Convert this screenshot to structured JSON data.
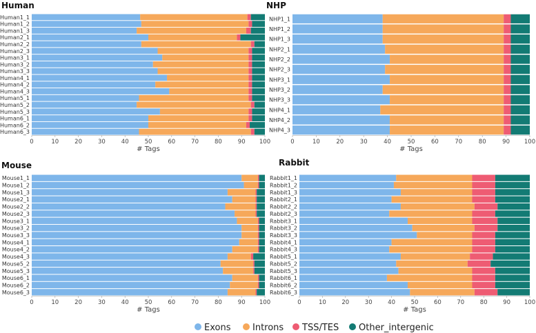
{
  "colors": {
    "exons": "#7EB6EA",
    "introns": "#F6A85A",
    "tss": "#EE5C73",
    "other": "#137B74"
  },
  "legend": [
    "Exons",
    "Introns",
    "TSS/TES",
    "Other_intergenic"
  ],
  "chart_data": [
    {
      "type": "bar",
      "orientation": "horizontal",
      "stacked": true,
      "title": "Human",
      "xlabel": "# Tags",
      "ylabel": "",
      "xlim": [
        0,
        100
      ],
      "xticks": [
        0,
        10,
        20,
        30,
        40,
        50,
        60,
        70,
        80,
        90,
        100
      ],
      "categories": [
        "Human1_1",
        "Human1_2",
        "Human1_3",
        "Human2_1",
        "Human2_2",
        "Human2_3",
        "Human3_1",
        "Human3_2",
        "Human3_3",
        "Human4_1",
        "Human4_2",
        "Human4_3",
        "Human5_1",
        "Human5_2",
        "Human5_3",
        "Human6_1",
        "Human6_2",
        "Human6_3"
      ],
      "series": [
        {
          "name": "Exons",
          "values": [
            46.5,
            47,
            45,
            50,
            47,
            54,
            56,
            52,
            54,
            58,
            53,
            59,
            46,
            45,
            55,
            50,
            50,
            46
          ]
        },
        {
          "name": "Introns",
          "values": [
            46,
            46,
            47,
            38,
            47,
            39,
            37,
            41,
            39,
            35,
            40,
            34,
            47,
            49,
            38,
            43,
            42,
            48
          ]
        },
        {
          "name": "TSS/TES",
          "values": [
            1.5,
            1.5,
            2,
            1.5,
            1.5,
            1.5,
            1.5,
            1.5,
            1.5,
            1.5,
            1.5,
            1.5,
            1.5,
            1.5,
            1.5,
            1.5,
            1.5,
            1.5
          ]
        },
        {
          "name": "Other_intergenic",
          "values": [
            6,
            5.5,
            6,
            10.5,
            4.5,
            5.5,
            5.5,
            5.5,
            5.5,
            5.5,
            5.5,
            5.5,
            5.5,
            4.5,
            5.5,
            5.5,
            6.5,
            4.5
          ]
        }
      ]
    },
    {
      "type": "bar",
      "orientation": "horizontal",
      "stacked": true,
      "title": "NHP",
      "xlabel": "# Tags",
      "ylabel": "",
      "xlim": [
        0,
        100
      ],
      "xticks": [
        0,
        10,
        20,
        30,
        40,
        50,
        60,
        70,
        80,
        90,
        100
      ],
      "categories": [
        "NHP1_1",
        "NHP1_2",
        "NHP1_3",
        "NHP2_1",
        "NHP2_2",
        "NHP2_3",
        "NHP3_1",
        "NHP3_2",
        "NHP3_3",
        "NHP4_1",
        "NHP4_2",
        "NHP4_3"
      ],
      "series": [
        {
          "name": "Exons",
          "values": [
            38,
            38,
            38,
            39,
            41,
            39,
            41,
            38,
            41,
            37,
            41,
            41
          ]
        },
        {
          "name": "Introns",
          "values": [
            51,
            51,
            51,
            50,
            48,
            50,
            48,
            51,
            48,
            52,
            48,
            48
          ]
        },
        {
          "name": "TSS/TES",
          "values": [
            3,
            3,
            3,
            3,
            3,
            3,
            3,
            3,
            3,
            3,
            3,
            3
          ]
        },
        {
          "name": "Other_intergenic",
          "values": [
            8,
            8,
            8,
            8,
            8,
            8,
            8,
            8,
            8,
            8,
            8,
            8
          ]
        }
      ]
    },
    {
      "type": "bar",
      "orientation": "horizontal",
      "stacked": true,
      "title": "Mouse",
      "xlabel": "# Tags",
      "ylabel": "",
      "xlim": [
        0,
        100
      ],
      "xticks": [
        0,
        10,
        20,
        30,
        40,
        50,
        60,
        70,
        80,
        90,
        100
      ],
      "categories": [
        "Mouse1_1",
        "Mouse1_2",
        "Mouse1_3",
        "Mouse2_1",
        "Mouse2_2",
        "Mouse2_3",
        "Mouse3_1",
        "Mouse3_2",
        "Mouse3_3",
        "Mouse4_1",
        "Mouse4_2",
        "Mouse4_3",
        "Mouse5_2",
        "Mouse5_3",
        "Mouse6_1",
        "Mouse6_2",
        "Mouse6_3"
      ],
      "series": [
        {
          "name": "Exons",
          "values": [
            90,
            91,
            84,
            86,
            83,
            87,
            88,
            90,
            90,
            89,
            86,
            84,
            81,
            82,
            86,
            85,
            84
          ]
        },
        {
          "name": "Introns",
          "values": [
            7,
            6,
            12,
            10,
            13,
            9,
            9,
            7,
            7,
            8,
            11,
            10,
            14,
            13,
            11,
            12,
            12
          ]
        },
        {
          "name": "TSS/TES",
          "values": [
            0.5,
            0.5,
            0.5,
            0.5,
            0.5,
            0.5,
            0.5,
            0.5,
            0.5,
            0.5,
            0.5,
            1,
            0.5,
            0.5,
            0.5,
            0.5,
            0.5
          ]
        },
        {
          "name": "Other_intergenic",
          "values": [
            2.5,
            2.5,
            3.5,
            3.5,
            3.5,
            3.5,
            2.5,
            2.5,
            2.5,
            2.5,
            2.5,
            5,
            4.5,
            4.5,
            2.5,
            2.5,
            3.5
          ]
        }
      ]
    },
    {
      "type": "bar",
      "orientation": "horizontal",
      "stacked": true,
      "title": "Rabbit",
      "xlabel": "# Tags",
      "ylabel": "",
      "xlim": [
        0,
        100
      ],
      "xticks": [
        0,
        10,
        20,
        30,
        40,
        50,
        60,
        70,
        80,
        90,
        100
      ],
      "categories": [
        "Rabbit1_1",
        "Rabbit1_2",
        "Rabbit1_3",
        "Rabbit2_1",
        "Rabbit2_2",
        "Rabbit2_3",
        "Rabbit3_1",
        "Rabbit3_2",
        "Rabbit3_3",
        "Rabbit4_1",
        "Rabbit4_3",
        "Rabbit5_1",
        "Rabbit5_2",
        "Rabbit5_3",
        "Rabbit6_1",
        "Rabbit6_2",
        "Rabbit6_3"
      ],
      "series": [
        {
          "name": "Exons",
          "values": [
            42,
            41,
            44,
            40,
            44,
            39,
            47,
            49,
            51,
            40,
            39,
            44,
            42,
            43,
            38,
            47,
            48
          ]
        },
        {
          "name": "Introns",
          "values": [
            33,
            34,
            31,
            35,
            32,
            36,
            28,
            27,
            24,
            35,
            36,
            30,
            31,
            32,
            37,
            28,
            28
          ]
        },
        {
          "name": "TSS/TES",
          "values": [
            10,
            10,
            10,
            10,
            10,
            10,
            11,
            10,
            10,
            10,
            10,
            10,
            10,
            10,
            10,
            10,
            10
          ]
        },
        {
          "name": "Other_intergenic",
          "values": [
            15,
            15,
            15,
            15,
            14,
            15,
            14,
            14,
            15,
            15,
            15,
            16,
            17,
            15,
            15,
            15,
            14
          ]
        }
      ]
    }
  ]
}
